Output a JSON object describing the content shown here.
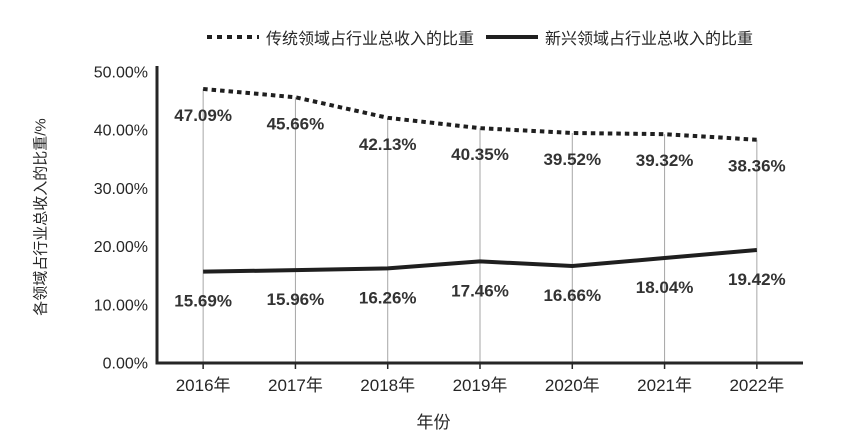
{
  "colors": {
    "line": "#1f1f1f",
    "axis": "#262626",
    "drop_lines": "#a6a6a6",
    "data_label_text": "#333333",
    "tick_label_text": "#262626",
    "background": "#ffffff"
  },
  "chart_data": {
    "type": "line",
    "title": "",
    "xlabel": "年份",
    "ylabel": "各领域占行业总收入的比重/%",
    "categories": [
      "2016年",
      "2017年",
      "2018年",
      "2019年",
      "2020年",
      "2021年",
      "2022年"
    ],
    "series": [
      {
        "name": "传统领域占行业总收入的比重",
        "line_style": "dotted",
        "values": [
          47.09,
          45.66,
          42.13,
          40.35,
          39.52,
          39.32,
          38.36
        ],
        "labels": [
          "47.09%",
          "45.66%",
          "42.13%",
          "40.35%",
          "39.52%",
          "39.32%",
          "38.36%"
        ]
      },
      {
        "name": "新兴领域占行业总收入的比重",
        "line_style": "solid",
        "values": [
          15.69,
          15.96,
          16.26,
          17.46,
          16.66,
          18.04,
          19.42
        ],
        "labels": [
          "15.69%",
          "15.96%",
          "16.26%",
          "17.46%",
          "16.66%",
          "18.04%",
          "19.42%"
        ]
      }
    ],
    "ylim": [
      0,
      50
    ],
    "y_ticks": {
      "values": [
        0,
        10,
        20,
        30,
        40,
        50
      ],
      "labels": [
        "0.00%",
        "10.00%",
        "20.00%",
        "30.00%",
        "40.00%",
        "50.00%"
      ]
    },
    "grid": "vertical drop lines from x-axis up to first series at each category; no horizontal gridlines",
    "legend_position": "top"
  }
}
